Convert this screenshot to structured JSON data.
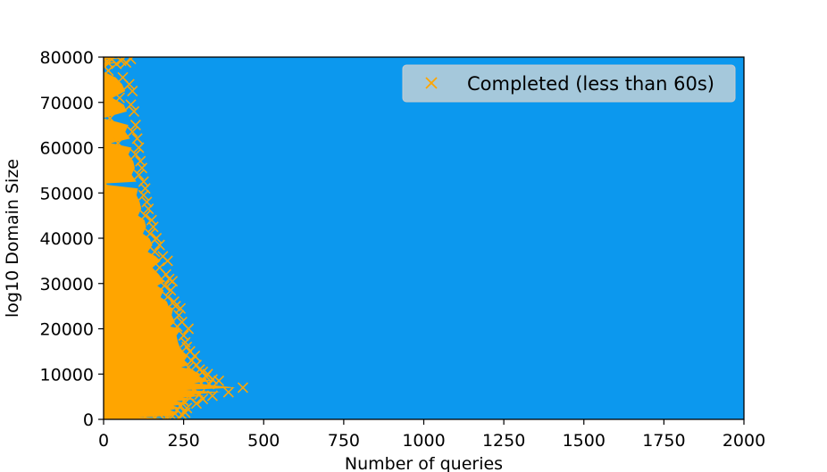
{
  "chart_data": {
    "type": "scatter",
    "title": "",
    "xlabel": "Number of queries",
    "ylabel": "log10 Domain Size",
    "xlim": [
      0,
      2000
    ],
    "ylim": [
      0,
      80000
    ],
    "xticks": [
      0,
      250,
      500,
      750,
      1000,
      1250,
      1500,
      1750,
      2000
    ],
    "yticks": [
      0,
      10000,
      20000,
      30000,
      40000,
      50000,
      60000,
      70000,
      80000
    ],
    "grid": false,
    "legend_position": "top-right",
    "plot_background": "#0c98ee",
    "series": [
      {
        "name": "Completed (less than 60s)",
        "marker": "x",
        "color": "#ffa500",
        "points": [
          [
            10,
            79000
          ],
          [
            25,
            79500
          ],
          [
            40,
            78500
          ],
          [
            55,
            79200
          ],
          [
            70,
            78800
          ],
          [
            85,
            79600
          ],
          [
            15,
            77000
          ],
          [
            60,
            75500
          ],
          [
            80,
            74000
          ],
          [
            90,
            72500
          ],
          [
            50,
            71000
          ],
          [
            85,
            69500
          ],
          [
            95,
            68000
          ],
          [
            20,
            66500
          ],
          [
            100,
            65000
          ],
          [
            90,
            63500
          ],
          [
            105,
            62000
          ],
          [
            45,
            61000
          ],
          [
            110,
            60000
          ],
          [
            100,
            58500
          ],
          [
            115,
            57000
          ],
          [
            120,
            55500
          ],
          [
            110,
            54000
          ],
          [
            125,
            52500
          ],
          [
            5,
            52000
          ],
          [
            130,
            51000
          ],
          [
            125,
            49500
          ],
          [
            135,
            48000
          ],
          [
            140,
            46500
          ],
          [
            130,
            45000
          ],
          [
            150,
            44000
          ],
          [
            155,
            42500
          ],
          [
            145,
            41000
          ],
          [
            165,
            40000
          ],
          [
            175,
            38500
          ],
          [
            160,
            37000
          ],
          [
            185,
            36000
          ],
          [
            200,
            35000
          ],
          [
            175,
            33500
          ],
          [
            195,
            32000
          ],
          [
            205,
            31000
          ],
          [
            215,
            30500
          ],
          [
            190,
            29500
          ],
          [
            210,
            28500
          ],
          [
            200,
            27000
          ],
          [
            220,
            26000
          ],
          [
            225,
            25000
          ],
          [
            240,
            24500
          ],
          [
            235,
            23000
          ],
          [
            245,
            21500
          ],
          [
            230,
            20500
          ],
          [
            265,
            20000
          ],
          [
            250,
            18500
          ],
          [
            255,
            17000
          ],
          [
            260,
            16000
          ],
          [
            270,
            15000
          ],
          [
            285,
            14000
          ],
          [
            275,
            13000
          ],
          [
            290,
            12000
          ],
          [
            265,
            11500
          ],
          [
            300,
            11000
          ],
          [
            310,
            10500
          ],
          [
            325,
            10000
          ],
          [
            320,
            9500
          ],
          [
            340,
            8800
          ],
          [
            360,
            8500
          ],
          [
            305,
            8000
          ],
          [
            330,
            7800
          ],
          [
            435,
            7000
          ],
          [
            280,
            6500
          ],
          [
            390,
            6000
          ],
          [
            300,
            5500
          ],
          [
            340,
            5200
          ],
          [
            270,
            4800
          ],
          [
            310,
            4500
          ],
          [
            250,
            4000
          ],
          [
            290,
            3500
          ],
          [
            240,
            3000
          ],
          [
            260,
            2500
          ],
          [
            230,
            2000
          ],
          [
            255,
            1500
          ],
          [
            245,
            1000
          ],
          [
            215,
            700
          ],
          [
            235,
            400
          ],
          [
            200,
            200
          ],
          [
            190,
            0
          ],
          [
            160,
            300
          ],
          [
            130,
            500
          ]
        ]
      }
    ]
  }
}
